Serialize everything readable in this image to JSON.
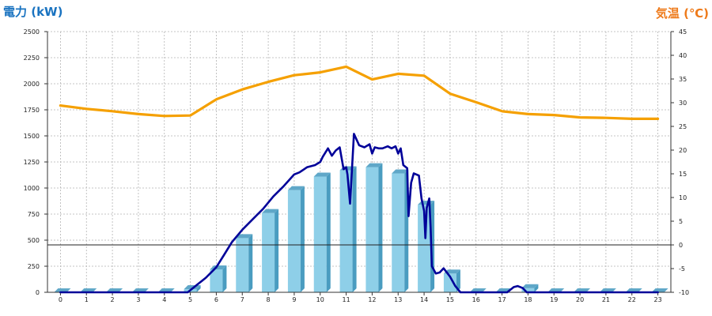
{
  "chart_data": {
    "type": "bar",
    "ylabel_left": "電力 (kW)",
    "ylabel_right": "気温 (℃)",
    "x_ticks": [
      "0",
      "1",
      "2",
      "3",
      "4",
      "5",
      "6",
      "7",
      "8",
      "9",
      "10",
      "11",
      "12",
      "13",
      "14",
      "15",
      "16",
      "17",
      "18",
      "19",
      "20",
      "21",
      "22",
      "23"
    ],
    "y_left_ticks": [
      "0",
      "250",
      "500",
      "750",
      "1000",
      "1250",
      "1500",
      "1750",
      "2000",
      "2250",
      "2500"
    ],
    "y_right_ticks": [
      "-10",
      "-5",
      "0",
      "5",
      "10",
      "15",
      "20",
      "25",
      "30",
      "35",
      "40",
      "45"
    ],
    "ylim_left": [
      0,
      2500
    ],
    "ylim_right": [
      -10,
      45
    ],
    "xlim": [
      -0.5,
      23.5
    ],
    "grid": true,
    "colors": {
      "bars": "#8ecfe8",
      "bar_side": "#4a9cc0",
      "bar_top": "#5fa7c8",
      "power_line": "#000099",
      "temperature_line": "#f5a000",
      "left_label": "#1a73c0",
      "right_label": "#ee7a1a",
      "grid": "#b4b4b4"
    },
    "series": [
      {
        "kind": "bar",
        "categories": [
          0,
          1,
          2,
          3,
          4,
          5,
          6,
          7,
          8,
          9,
          10,
          11,
          12,
          13,
          14,
          15,
          16,
          17,
          18,
          19,
          20,
          21,
          22,
          23
        ],
        "values": [
          0,
          0,
          0,
          0,
          0,
          30,
          220,
          520,
          760,
          980,
          1110,
          1170,
          1200,
          1140,
          840,
          180,
          0,
          0,
          40,
          0,
          0,
          0,
          0,
          0
        ]
      },
      {
        "kind": "line",
        "axis": "left",
        "x": [
          0,
          1,
          2,
          3,
          4,
          4.9,
          5.3,
          5.6,
          6.0,
          6.3,
          6.6,
          7.0,
          7.4,
          7.8,
          8.2,
          8.6,
          9.0,
          9.2,
          9.5,
          9.8,
          10.0,
          10.1,
          10.3,
          10.45,
          10.6,
          10.75,
          10.9,
          11.0,
          11.05,
          11.15,
          11.3,
          11.5,
          11.7,
          11.9,
          12.0,
          12.1,
          12.25,
          12.4,
          12.6,
          12.75,
          12.9,
          13.0,
          13.1,
          13.2,
          13.35,
          13.4,
          13.5,
          13.6,
          13.8,
          13.9,
          14.0,
          14.05,
          14.1,
          14.2,
          14.25,
          14.3,
          14.45,
          14.6,
          14.75,
          15.0,
          15.2,
          15.4,
          15.6,
          15.9,
          16.2,
          16.5,
          16.8,
          17.0,
          17.2,
          17.45,
          17.6,
          17.8,
          17.95,
          18.1,
          18.5,
          19,
          20,
          21,
          22,
          23
        ],
        "y": [
          0,
          0,
          0,
          0,
          0,
          0,
          80,
          140,
          240,
          360,
          480,
          600,
          700,
          800,
          920,
          1020,
          1130,
          1150,
          1200,
          1220,
          1250,
          1300,
          1380,
          1310,
          1360,
          1390,
          1180,
          1200,
          1130,
          850,
          1520,
          1410,
          1390,
          1420,
          1330,
          1390,
          1380,
          1380,
          1400,
          1380,
          1400,
          1330,
          1380,
          1220,
          1190,
          730,
          1050,
          1140,
          1120,
          900,
          780,
          520,
          810,
          900,
          620,
          250,
          180,
          190,
          230,
          150,
          60,
          0,
          0,
          0,
          0,
          0,
          0,
          0,
          0,
          50,
          60,
          40,
          0,
          0,
          0,
          0,
          0,
          0,
          0,
          0
        ]
      },
      {
        "kind": "line",
        "axis": "right",
        "x": [
          0,
          1,
          2,
          3,
          4,
          5,
          6,
          7,
          8,
          9,
          10,
          11,
          12,
          13,
          14,
          15,
          16,
          17,
          18,
          19,
          20,
          21,
          22,
          23
        ],
        "y": [
          29.4,
          28.7,
          28.2,
          27.6,
          27.2,
          27.3,
          30.7,
          32.8,
          34.4,
          35.8,
          36.4,
          37.6,
          34.9,
          36.1,
          35.7,
          31.9,
          30.1,
          28.2,
          27.6,
          27.4,
          26.9,
          26.8,
          26.6,
          26.6
        ]
      }
    ]
  }
}
